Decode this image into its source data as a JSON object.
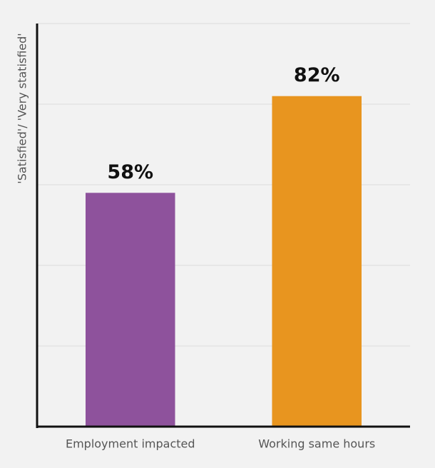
{
  "chart_data": {
    "type": "bar",
    "y_axis_label": "'Satisfied'/ 'Very statisfied'",
    "categories": [
      "Employment impacted",
      "Working same hours"
    ],
    "values": [
      58,
      82
    ],
    "value_labels": [
      "58%",
      "82%"
    ],
    "colors": [
      "#8e529c",
      "#e8951f"
    ],
    "ylim": [
      0,
      100
    ],
    "yticks": [
      0,
      20,
      40,
      60,
      80,
      100
    ],
    "grid": true
  }
}
